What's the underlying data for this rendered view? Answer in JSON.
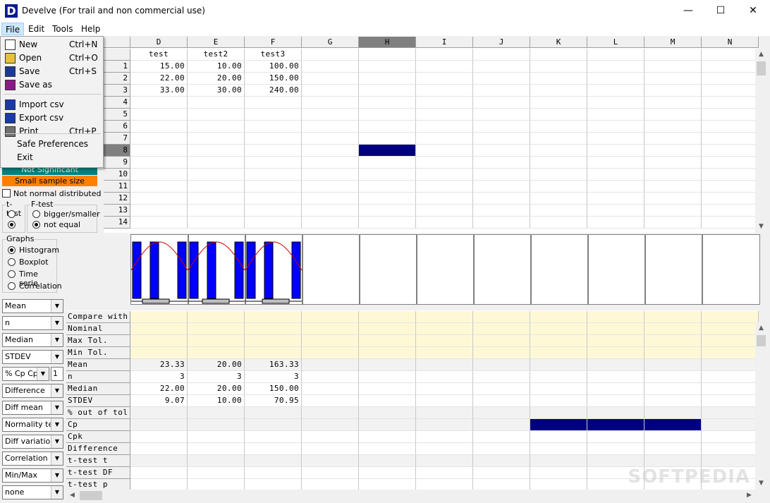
{
  "window": {
    "title": "Develve (For trail and non commercial use)",
    "app_icon_letter": "D",
    "minimize": "—",
    "maximize": "☐",
    "close": "✕"
  },
  "menubar": [
    "File",
    "Edit",
    "Tools",
    "Help"
  ],
  "file_menu": [
    {
      "label": "New",
      "shortcut": "Ctrl+N",
      "icon": "new-file-icon"
    },
    {
      "label": "Open",
      "shortcut": "Ctrl+O",
      "icon": "open-folder-icon"
    },
    {
      "label": "Save",
      "shortcut": "Ctrl+S",
      "icon": "save-disk-icon"
    },
    {
      "label": "Save as",
      "shortcut": "",
      "icon": "save-as-disk-icon"
    },
    {
      "label": "Import csv",
      "shortcut": "",
      "icon": "import-arrow-icon"
    },
    {
      "label": "Export csv",
      "shortcut": "",
      "icon": "export-arrow-icon"
    },
    {
      "label": "Print",
      "shortcut": "Ctrl+P",
      "icon": "printer-icon"
    },
    {
      "label": "Safe Preferences",
      "shortcut": ""
    },
    {
      "label": "Exit",
      "shortcut": ""
    }
  ],
  "grid": {
    "columns": [
      "D",
      "E",
      "F",
      "G",
      "H",
      "I",
      "J",
      "K",
      "L",
      "M",
      "N"
    ],
    "selected_column": "H",
    "headers": [
      "test",
      "test2",
      "test3"
    ],
    "rows": [
      [
        "15.00",
        "10.00",
        "100.00"
      ],
      [
        "22.00",
        "20.00",
        "150.00"
      ],
      [
        "33.00",
        "30.00",
        "240.00"
      ]
    ],
    "row_numbers": [
      "1",
      "2",
      "3",
      "4",
      "5",
      "6",
      "7",
      "8",
      "9",
      "10",
      "11",
      "12",
      "13",
      "14"
    ],
    "selected_row": "8"
  },
  "left_panel": {
    "legend_not_significant": "Not Significant",
    "legend_small_sample": "Small sample size",
    "not_normal_label": "Not normal distributed",
    "ttest_label": "t-test",
    "ftest_label": "F-test",
    "ftest_options": [
      "bigger/smaller",
      "not equal"
    ],
    "graphs_label": "Graphs",
    "graph_options": [
      "Histogram",
      "Boxplot",
      "Time serie",
      "Correlation"
    ],
    "combos": [
      "Mean",
      "n",
      "Median",
      "STDEV",
      "% Cp Cpk",
      "Difference",
      "Diff mean",
      "Normality test",
      "Diff variation",
      "Correlation",
      "Min/Max",
      "none"
    ],
    "cpk_value": "1"
  },
  "stats": {
    "row_labels": [
      "Compare with",
      "Nominal",
      "Max Tol.",
      "Min Tol.",
      "Mean",
      "n",
      "Median",
      "STDEV",
      "% out of tol",
      "Cp",
      "Cpk",
      "Difference",
      "t-test t",
      "t-test DF",
      "t-test p"
    ],
    "mean": [
      "23.33",
      "20.00",
      "163.33"
    ],
    "n": [
      "3",
      "3",
      "3"
    ],
    "median": [
      "22.00",
      "20.00",
      "150.00"
    ],
    "stdev": [
      "9.07",
      "10.00",
      "70.95"
    ]
  },
  "colors": {
    "selection": "#000080",
    "not_significant": "#008080",
    "small_sample": "#ff8000",
    "histogram_bar": "#0000ff",
    "fit_curve": "#cc0000",
    "tolerance_fill": "#fff8d6"
  },
  "watermark": "SOFTPEDIA"
}
